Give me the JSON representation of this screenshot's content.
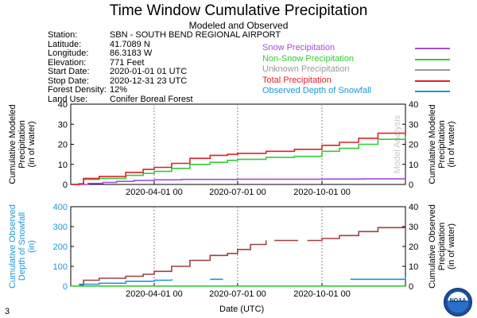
{
  "header": {
    "title": "Time Window Cumulative Precipitation",
    "subtitle": "Modeled and Observed"
  },
  "station_info": [
    {
      "label": "Station:",
      "value": "SBN - SOUTH BEND REGIONAL AIRPORT"
    },
    {
      "label": "Latitude:",
      "value": "41.7089 N"
    },
    {
      "label": "Longitude:",
      "value": "86.3183 W"
    },
    {
      "label": "Elevation:",
      "value": "771 Feet"
    },
    {
      "label": "Start Date:",
      "value": "2020-01-01 01 UTC"
    },
    {
      "label": "Stop Date:",
      "value": "2020-12-31 23 UTC"
    },
    {
      "label": "Forest Density:",
      "value": "12%"
    },
    {
      "label": "Land Use:",
      "value": "Conifer Boreal Forest"
    }
  ],
  "legend": [
    {
      "label": "Snow Precipitation",
      "color": "#a64dd9"
    },
    {
      "label": "Non-Snow Precipitation",
      "color": "#33cc33"
    },
    {
      "label": "Unknown Precipitation",
      "color": "#999999"
    },
    {
      "label": "Total Precipitation",
      "color": "#e0202a"
    },
    {
      "label": "Observed Depth of Snowfall",
      "color": "#1e96d8"
    }
  ],
  "colors": {
    "observed_cumulative": "#a04040",
    "grid": "#888888",
    "observed_axis_text": "#1e96d8"
  },
  "footer": {
    "xlabel": "Date (UTC)",
    "page_number": "3",
    "logo_text": "NOAA"
  },
  "chart_data": [
    {
      "type": "line",
      "name": "modeled",
      "x_range": [
        "2020-01-01",
        "2020-12-31"
      ],
      "ylim": [
        0,
        40
      ],
      "yticks": [
        0,
        10,
        20,
        30,
        40
      ],
      "xticks": [
        "2020-04-01 00",
        "2020-07-01 00",
        "2020-10-01 00"
      ],
      "ylabel_left": [
        "Cumulative Modeled",
        "Precipitation",
        "(in of water)"
      ],
      "ylabel_right": [
        "Cumulative Modeled",
        "Precipitation",
        "(in of water)"
      ],
      "watermark": "Model Analysis",
      "grid": "vertical dashed at x ticks",
      "series": [
        {
          "name": "Snow Precipitation",
          "color": "#a64dd9",
          "points": [
            [
              "2020-01-01",
              0
            ],
            [
              "2020-01-20",
              0.5
            ],
            [
              "2020-02-05",
              1.0
            ],
            [
              "2020-02-20",
              1.5
            ],
            [
              "2020-03-10",
              2.0
            ],
            [
              "2020-04-01",
              2.3
            ],
            [
              "2020-05-01",
              2.5
            ],
            [
              "2020-07-01",
              2.6
            ],
            [
              "2020-10-01",
              2.7
            ],
            [
              "2020-11-15",
              2.8
            ],
            [
              "2020-12-31",
              3.0
            ]
          ]
        },
        {
          "name": "Non-Snow Precipitation",
          "color": "#33cc33",
          "points": [
            [
              "2020-01-01",
              0
            ],
            [
              "2020-01-10",
              0.3
            ],
            [
              "2020-01-15",
              2.5
            ],
            [
              "2020-02-01",
              3.0
            ],
            [
              "2020-03-01",
              4.5
            ],
            [
              "2020-03-20",
              5.5
            ],
            [
              "2020-04-01",
              6.5
            ],
            [
              "2020-04-20",
              8.0
            ],
            [
              "2020-05-10",
              10.0
            ],
            [
              "2020-06-01",
              11.0
            ],
            [
              "2020-06-20",
              12.0
            ],
            [
              "2020-07-01",
              12.5
            ],
            [
              "2020-08-01",
              13.5
            ],
            [
              "2020-09-01",
              14.0
            ],
            [
              "2020-10-01",
              16.5
            ],
            [
              "2020-10-20",
              18.0
            ],
            [
              "2020-11-10",
              20.0
            ],
            [
              "2020-12-01",
              22.5
            ],
            [
              "2020-12-31",
              24.0
            ]
          ]
        },
        {
          "name": "Total Precipitation",
          "color": "#e0202a",
          "points": [
            [
              "2020-01-01",
              0
            ],
            [
              "2020-01-10",
              0.3
            ],
            [
              "2020-01-15",
              3.0
            ],
            [
              "2020-02-01",
              4.0
            ],
            [
              "2020-03-01",
              6.0
            ],
            [
              "2020-03-20",
              7.5
            ],
            [
              "2020-04-01",
              8.5
            ],
            [
              "2020-04-20",
              10.5
            ],
            [
              "2020-05-10",
              13.0
            ],
            [
              "2020-06-01",
              14.5
            ],
            [
              "2020-06-20",
              15.0
            ],
            [
              "2020-07-01",
              15.5
            ],
            [
              "2020-08-01",
              16.5
            ],
            [
              "2020-09-01",
              17.5
            ],
            [
              "2020-10-01",
              19.5
            ],
            [
              "2020-10-20",
              21.0
            ],
            [
              "2020-11-10",
              23.0
            ],
            [
              "2020-12-01",
              25.5
            ],
            [
              "2020-12-31",
              27.0
            ]
          ]
        }
      ]
    },
    {
      "type": "line",
      "name": "observed",
      "x_range": [
        "2020-01-01",
        "2020-12-31"
      ],
      "ylim_left": [
        0,
        400
      ],
      "yticks_left": [
        0,
        100,
        200,
        300,
        400
      ],
      "ylim_right": [
        0,
        40
      ],
      "yticks_right": [
        0,
        10,
        20,
        30,
        40
      ],
      "xticks": [
        "2020-04-01 00",
        "2020-07-01 00",
        "2020-10-01 00"
      ],
      "ylabel_left": [
        "Cumulative Observed",
        "Depth of Snowfall",
        "(in)"
      ],
      "ylabel_right": [
        "Cumulative Observed",
        "Precipitation",
        "(in of water)"
      ],
      "grid": "vertical dashed at x ticks",
      "series": [
        {
          "axis": "right",
          "color": "#a04040",
          "segments": [
            [
              [
                "2020-01-10",
                0.5
              ],
              [
                "2020-01-15",
                3.0
              ],
              [
                "2020-02-01",
                4.0
              ],
              [
                "2020-03-01",
                5.0
              ],
              [
                "2020-03-20",
                6.0
              ],
              [
                "2020-04-01",
                7.5
              ],
              [
                "2020-04-20",
                10.0
              ],
              [
                "2020-05-10",
                13.0
              ],
              [
                "2020-06-01",
                15.5
              ],
              [
                "2020-06-20",
                16.5
              ],
              [
                "2020-07-01",
                18.5
              ],
              [
                "2020-07-15",
                21.0
              ],
              [
                "2020-08-01",
                23.0
              ]
            ],
            [
              [
                "2020-08-10",
                23.0
              ],
              [
                "2020-09-05",
                23.0
              ]
            ],
            [
              [
                "2020-09-15",
                23.0
              ],
              [
                "2020-10-01",
                24.0
              ],
              [
                "2020-10-20",
                25.5
              ],
              [
                "2020-11-10",
                27.5
              ],
              [
                "2020-12-01",
                29.5
              ],
              [
                "2020-12-31",
                31.5
              ]
            ]
          ]
        },
        {
          "axis": "right",
          "color": "#33cc33",
          "segments": [
            [
              [
                "2020-01-01",
                0.1
              ],
              [
                "2020-12-31",
                0.1
              ]
            ]
          ]
        },
        {
          "axis": "left",
          "color": "#1e96d8",
          "segments": [
            [
              [
                "2020-01-10",
                10
              ],
              [
                "2020-02-01",
                15
              ],
              [
                "2020-03-01",
                25
              ],
              [
                "2020-04-01",
                30
              ],
              [
                "2020-04-20",
                35
              ]
            ],
            [
              [
                "2020-06-01",
                35
              ],
              [
                "2020-06-15",
                35
              ]
            ],
            [
              [
                "2020-11-01",
                35
              ],
              [
                "2020-12-20",
                35
              ],
              [
                "2020-12-31",
                50
              ]
            ]
          ]
        }
      ]
    }
  ]
}
